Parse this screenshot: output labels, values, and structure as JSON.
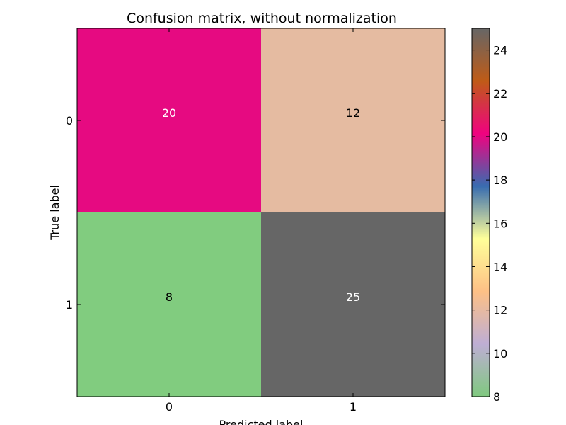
{
  "chart_data": {
    "type": "heatmap",
    "title": "Confusion matrix, without normalization",
    "xlabel": "Predicted label",
    "ylabel": "True label",
    "x_categories": [
      "0",
      "1"
    ],
    "y_categories": [
      "0",
      "1"
    ],
    "values": [
      [
        20,
        12
      ],
      [
        8,
        25
      ]
    ],
    "cell_colors": [
      [
        "#e60a81",
        "#e5bba1"
      ],
      [
        "#81cc7f",
        "#666666"
      ]
    ],
    "label_colors": [
      [
        "#ffffff",
        "#000000"
      ],
      [
        "#000000",
        "#ffffff"
      ]
    ],
    "colorbar": {
      "range": [
        8,
        25
      ],
      "ticks": [
        "8",
        "10",
        "12",
        "14",
        "16",
        "18",
        "20",
        "22",
        "24"
      ],
      "colormap": "Accent",
      "stops": [
        "#7fc97f",
        "#beaed4",
        "#fdc086",
        "#ffff99",
        "#386cb0",
        "#f0027f",
        "#bf5b17",
        "#666666"
      ]
    },
    "grid": false
  }
}
